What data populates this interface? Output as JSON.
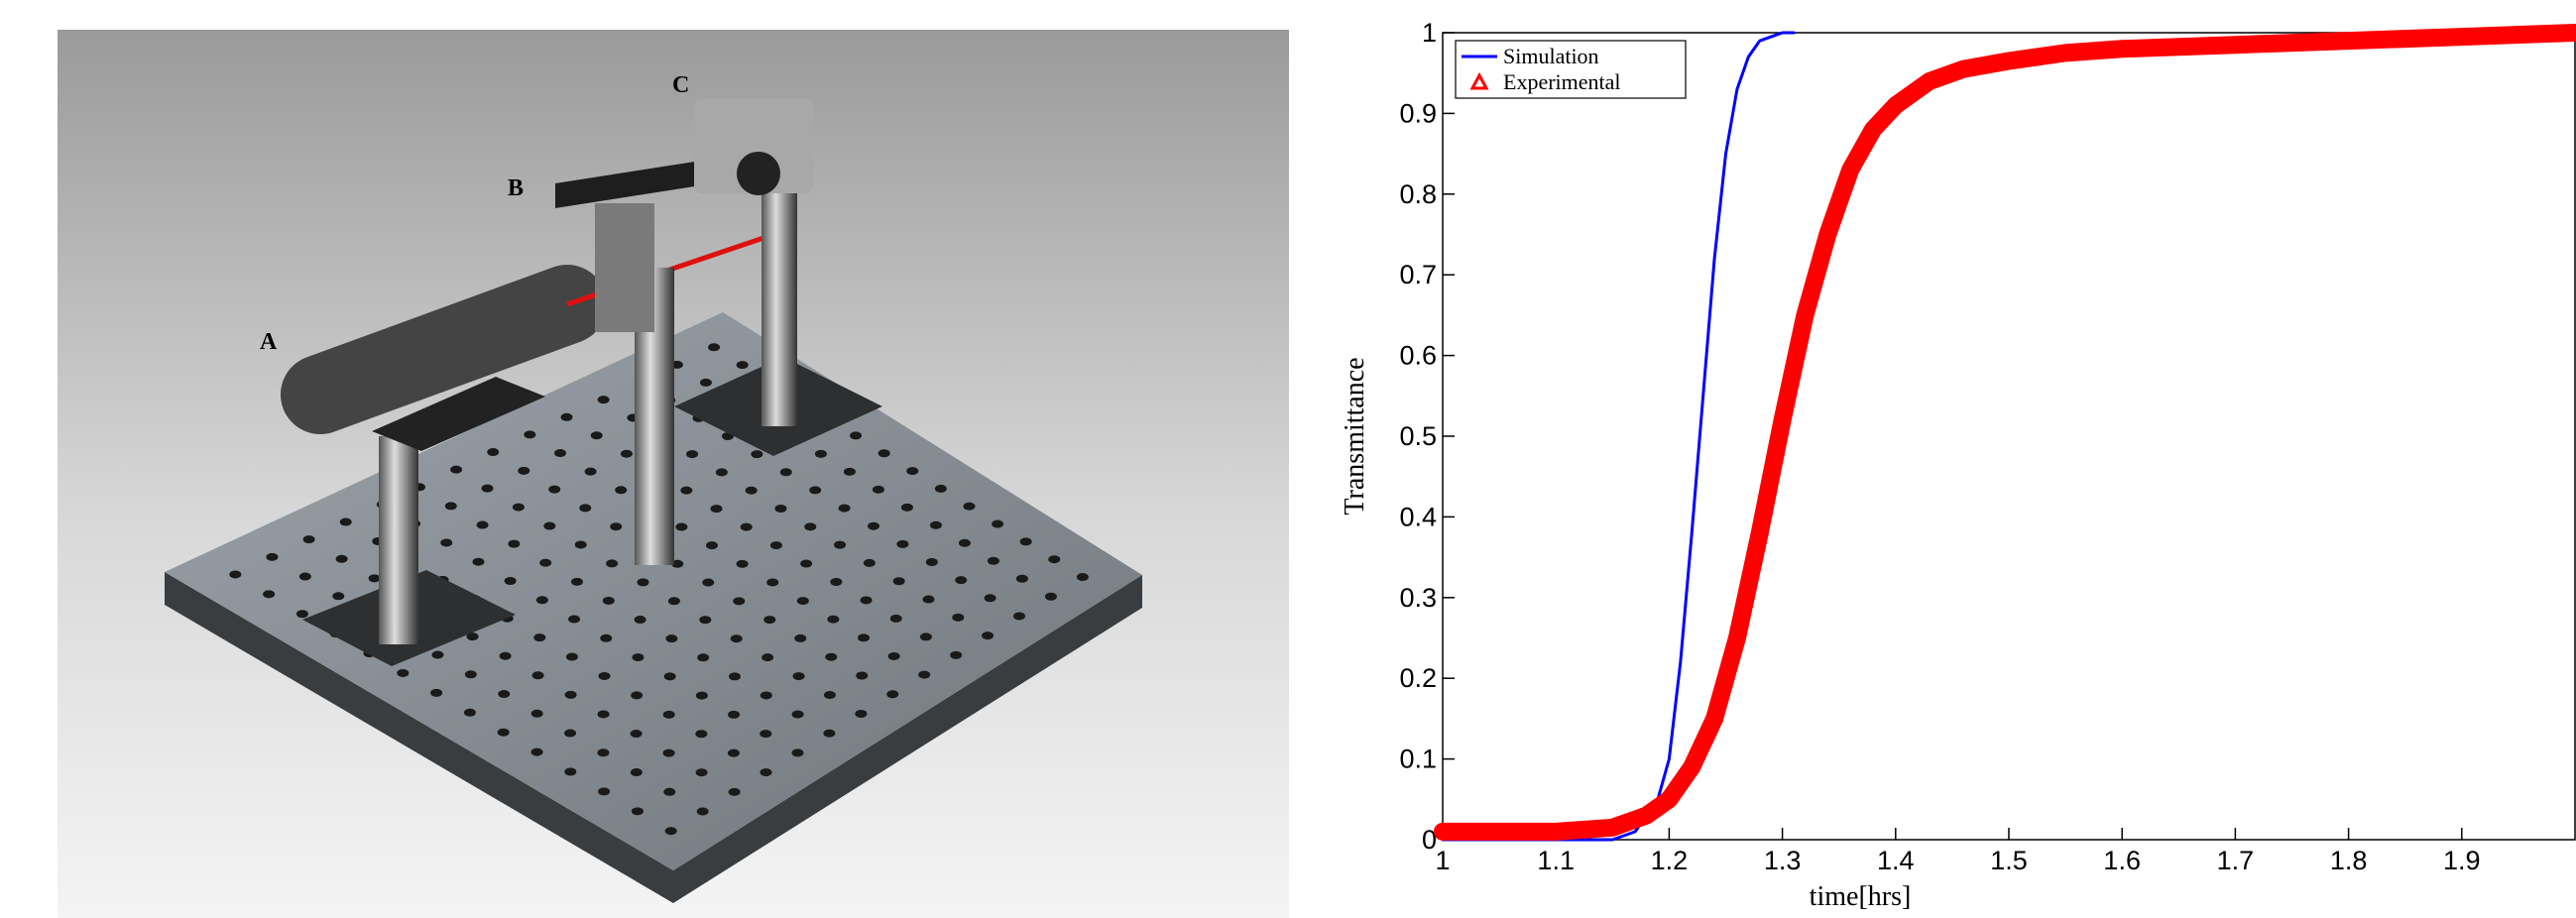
{
  "figure": {
    "labels": [
      "A",
      "B",
      "C"
    ]
  },
  "chart_data": {
    "type": "line",
    "x_label": "time[hrs]",
    "y_label": "Transmittance",
    "xlim": [
      1,
      2
    ],
    "ylim": [
      0,
      1
    ],
    "xticks": [
      1,
      1.1,
      1.2,
      1.3,
      1.4,
      1.5,
      1.6,
      1.7,
      1.8,
      1.9
    ],
    "yticks": [
      0,
      0.1,
      0.2,
      0.3,
      0.4,
      0.5,
      0.6,
      0.7,
      0.8,
      0.9,
      1
    ],
    "legend": "upper-left",
    "series": [
      {
        "name": "Simulation",
        "color": "#0000ff",
        "marker": "none",
        "x": [
          1,
          1.1,
          1.15,
          1.17,
          1.19,
          1.2,
          1.21,
          1.22,
          1.23,
          1.24,
          1.25,
          1.26,
          1.27,
          1.28,
          1.29,
          1.3,
          1.31
        ],
        "values": [
          0,
          0,
          0,
          0.01,
          0.05,
          0.1,
          0.22,
          0.38,
          0.55,
          0.72,
          0.85,
          0.93,
          0.97,
          0.99,
          0.995,
          1,
          1
        ]
      },
      {
        "name": "Experimental",
        "color": "#ff0000",
        "marker": "triangle",
        "x": [
          1,
          1.05,
          1.1,
          1.15,
          1.18,
          1.2,
          1.22,
          1.24,
          1.26,
          1.28,
          1.3,
          1.32,
          1.34,
          1.36,
          1.38,
          1.4,
          1.43,
          1.46,
          1.5,
          1.55,
          1.6,
          1.7,
          1.8,
          1.9,
          2
        ],
        "values": [
          0.01,
          0.01,
          0.01,
          0.015,
          0.03,
          0.05,
          0.09,
          0.15,
          0.25,
          0.38,
          0.52,
          0.65,
          0.75,
          0.83,
          0.88,
          0.91,
          0.94,
          0.955,
          0.965,
          0.975,
          0.98,
          0.985,
          0.99,
          0.995,
          1
        ]
      }
    ]
  }
}
